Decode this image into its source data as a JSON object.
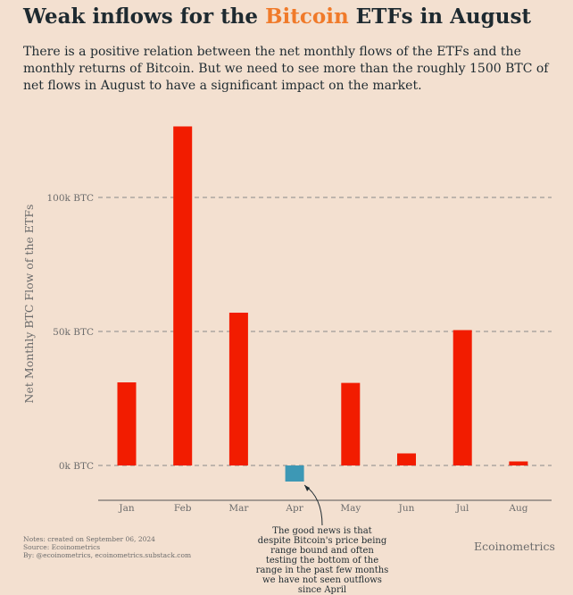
{
  "header": {
    "title_before": "Weak inflows for the ",
    "title_highlight": "Bitcoin",
    "title_after": " ETFs in August",
    "subtitle": "There is a positive relation between the net monthly flows of the ETFs and the monthly returns of Bitcoin. But we need to see more than the roughly 1500 BTC of net flows in August to have a significant impact on the market."
  },
  "colors": {
    "positive_bar": "#f21c00",
    "negative_bar": "#3d98b5",
    "title_accent": "#f07a2a",
    "background": "#f3e0d0",
    "grid": "#8a8a8a",
    "axis_text": "#6b6b6b"
  },
  "chart_data": {
    "type": "bar",
    "categories": [
      "Jan",
      "Feb",
      "Mar",
      "Apr",
      "May",
      "Jun",
      "Jul",
      "Aug"
    ],
    "values": [
      31000,
      126500,
      57000,
      -6000,
      30800,
      4500,
      50500,
      1500
    ],
    "ylabel": "Net Monthly BTC Flow of the ETFs",
    "xlabel": "",
    "yticks": [
      0,
      50000,
      100000
    ],
    "ytick_labels": [
      "0k BTC",
      "50k BTC",
      "100k BTC"
    ],
    "ylim": [
      -13000,
      133000
    ],
    "grid": true,
    "annotation": {
      "target": "Apr",
      "text": "The good news is that despite Bitcoin's price being range bound and often testing the bottom of the range in the past few months we have not seen outflows since April"
    }
  },
  "footer": {
    "notes": [
      "Notes: created on September 06, 2024",
      "Source: Ecoinometrics",
      "By: @ecoinometrics, ecoinometrics.substack.com"
    ],
    "brand": "Ecoinometrics"
  }
}
